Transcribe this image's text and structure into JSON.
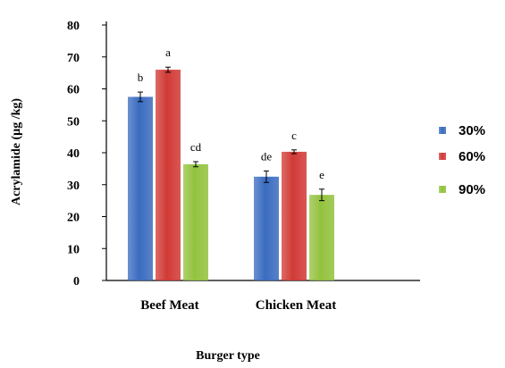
{
  "chart_data": {
    "type": "bar",
    "categories": [
      "Beef Meat",
      "Chicken Meat"
    ],
    "series": [
      {
        "name": "30%",
        "values": [
          57.5,
          32.5
        ],
        "errors": [
          1.5,
          1.8
        ],
        "letters": [
          "b",
          "de"
        ],
        "color": "#3b6cc0"
      },
      {
        "name": "60%",
        "values": [
          66.0,
          40.3
        ],
        "errors": [
          0.8,
          0.6
        ],
        "letters": [
          "a",
          "c"
        ],
        "color": "#d13a36"
      },
      {
        "name": "90%",
        "values": [
          36.4,
          26.8
        ],
        "errors": [
          0.8,
          1.8
        ],
        "letters": [
          "cd",
          "e"
        ],
        "color": "#93c23e"
      }
    ],
    "xlabel": "Burger type",
    "ylabel": "Acrylamide (µg /kg)",
    "ylim": [
      0,
      80
    ],
    "yticks": [
      0,
      10,
      20,
      30,
      40,
      50,
      60,
      70,
      80
    ],
    "grid": false,
    "legend": "right"
  }
}
